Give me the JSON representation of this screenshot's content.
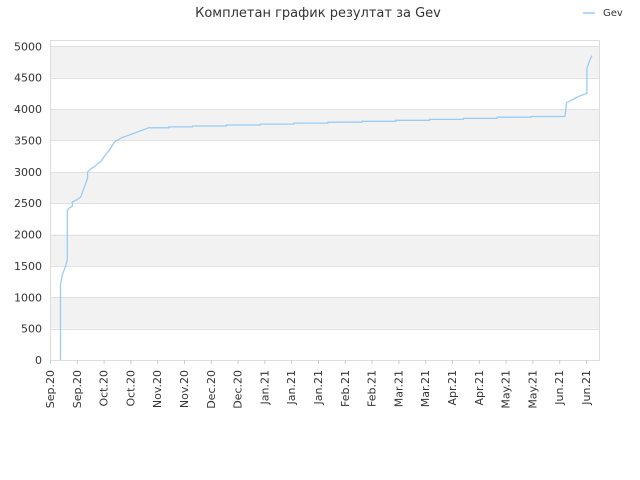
{
  "chart_data": {
    "type": "line",
    "title": "Комплетан график резултат за Gev",
    "xlabel": "",
    "ylabel": "",
    "ylim": [
      0,
      5100
    ],
    "y_ticks": [
      0,
      500,
      1000,
      1500,
      2000,
      2500,
      3000,
      3500,
      4000,
      4500,
      5000
    ],
    "x_ticks": [
      "Sep.20",
      "Sep.20",
      "Oct.20",
      "Oct.20",
      "Nov.20",
      "Nov.20",
      "Dec.20",
      "Dec.20",
      "Jan.21",
      "Jan.21",
      "Jan.21",
      "Feb.21",
      "Feb.21",
      "Mar.21",
      "Mar.21",
      "Apr.21",
      "Apr.21",
      "May.21",
      "May.21",
      "Jun.21",
      "Jun.21"
    ],
    "grid": true,
    "legend_position": "top-right",
    "colors": {
      "line": "#99ccf5",
      "band": "#f2f2f2",
      "grid": "#e0e0e0",
      "axis": "#cccccc"
    },
    "series": [
      {
        "name": "Gev",
        "points": [
          [
            0.0,
            0
          ],
          [
            0.0,
            1200
          ],
          [
            0.1,
            1350
          ],
          [
            0.3,
            1500
          ],
          [
            0.4,
            1600
          ],
          [
            0.4,
            2380
          ],
          [
            0.5,
            2420
          ],
          [
            0.7,
            2450
          ],
          [
            0.7,
            2520
          ],
          [
            1.0,
            2560
          ],
          [
            1.2,
            2600
          ],
          [
            1.4,
            2750
          ],
          [
            1.6,
            2900
          ],
          [
            1.6,
            3000
          ],
          [
            1.8,
            3050
          ],
          [
            2.0,
            3080
          ],
          [
            2.2,
            3130
          ],
          [
            2.4,
            3170
          ],
          [
            2.6,
            3250
          ],
          [
            2.9,
            3350
          ],
          [
            3.2,
            3480
          ],
          [
            3.6,
            3540
          ],
          [
            4.2,
            3600
          ],
          [
            4.8,
            3660
          ],
          [
            5.2,
            3700
          ],
          [
            5.8,
            3700
          ],
          [
            6.4,
            3700
          ],
          [
            6.4,
            3715
          ],
          [
            7.8,
            3715
          ],
          [
            7.8,
            3730
          ],
          [
            9.8,
            3730
          ],
          [
            9.8,
            3745
          ],
          [
            11.8,
            3745
          ],
          [
            11.8,
            3760
          ],
          [
            13.8,
            3760
          ],
          [
            13.8,
            3775
          ],
          [
            15.8,
            3775
          ],
          [
            15.8,
            3790
          ],
          [
            17.8,
            3790
          ],
          [
            17.8,
            3805
          ],
          [
            19.8,
            3805
          ],
          [
            19.8,
            3820
          ],
          [
            21.8,
            3820
          ],
          [
            21.8,
            3835
          ],
          [
            23.8,
            3835
          ],
          [
            23.8,
            3850
          ],
          [
            25.8,
            3850
          ],
          [
            25.8,
            3870
          ],
          [
            27.8,
            3870
          ],
          [
            27.8,
            3880
          ],
          [
            29.8,
            3880
          ],
          [
            29.9,
            4100
          ],
          [
            30.6,
            4200
          ],
          [
            31.1,
            4250
          ],
          [
            31.1,
            4650
          ],
          [
            31.3,
            4800
          ],
          [
            31.4,
            4850
          ]
        ]
      }
    ]
  }
}
